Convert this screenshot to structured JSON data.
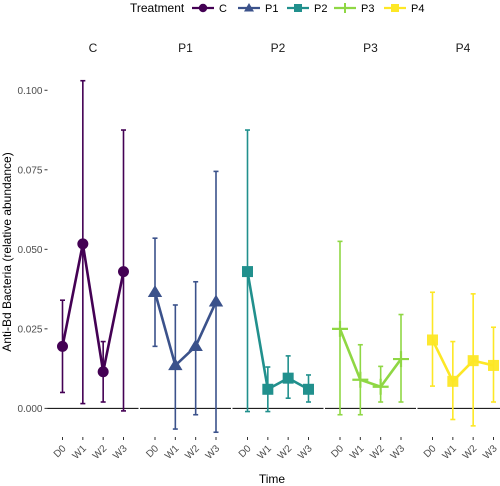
{
  "chart_data": {
    "type": "line",
    "xlabel": "Time",
    "ylabel": "Anti-Bd Bacteria (relative abundance)",
    "legend": {
      "title": "Treatment",
      "position": "top"
    },
    "x": [
      "D0",
      "W1",
      "W2",
      "W3"
    ],
    "ylim": [
      -0.009,
      0.107
    ],
    "yticks": [
      0.0,
      0.025,
      0.05,
      0.075,
      0.1
    ],
    "ytick_labels": [
      "0.000",
      "0.025",
      "0.050",
      "0.075",
      "0.100"
    ],
    "hline": 0,
    "grid": false,
    "error_bars": true,
    "series": [
      {
        "name": "C",
        "panel": "C",
        "color": "#440154",
        "marker": "circle",
        "values": [
          0.0195,
          0.0517,
          0.0115,
          0.043
        ],
        "lower": [
          0.005,
          0.0015,
          0.002,
          -0.0008
        ],
        "upper": [
          0.034,
          0.103,
          0.021,
          0.0875
        ]
      },
      {
        "name": "P1",
        "panel": "P1",
        "color": "#3b528b",
        "marker": "triangle",
        "values": [
          0.0365,
          0.0135,
          0.0195,
          0.0335
        ],
        "lower": [
          0.0195,
          -0.0065,
          -0.002,
          -0.0075
        ],
        "upper": [
          0.0535,
          0.0325,
          0.0398,
          0.0745
        ]
      },
      {
        "name": "P2",
        "panel": "P2",
        "color": "#21908d",
        "marker": "square",
        "values": [
          0.043,
          0.006,
          0.0095,
          0.006
        ],
        "lower": [
          -0.001,
          -0.001,
          0.0032,
          0.002
        ],
        "upper": [
          0.0875,
          0.013,
          0.0165,
          0.0105
        ]
      },
      {
        "name": "P3",
        "panel": "P3",
        "color": "#8fd744",
        "marker": "plus",
        "values": [
          0.025,
          0.009,
          0.0068,
          0.0155
        ],
        "lower": [
          -0.002,
          -0.002,
          0.002,
          0.002
        ],
        "upper": [
          0.0525,
          0.02,
          0.0132,
          0.0295
        ]
      },
      {
        "name": "P4",
        "panel": "P4",
        "color": "#fde725",
        "marker": "square-open",
        "values": [
          0.0215,
          0.0085,
          0.015,
          0.0135
        ],
        "lower": [
          0.007,
          -0.0035,
          -0.0055,
          0.002
        ],
        "upper": [
          0.0365,
          0.021,
          0.036,
          0.0255
        ]
      }
    ]
  }
}
